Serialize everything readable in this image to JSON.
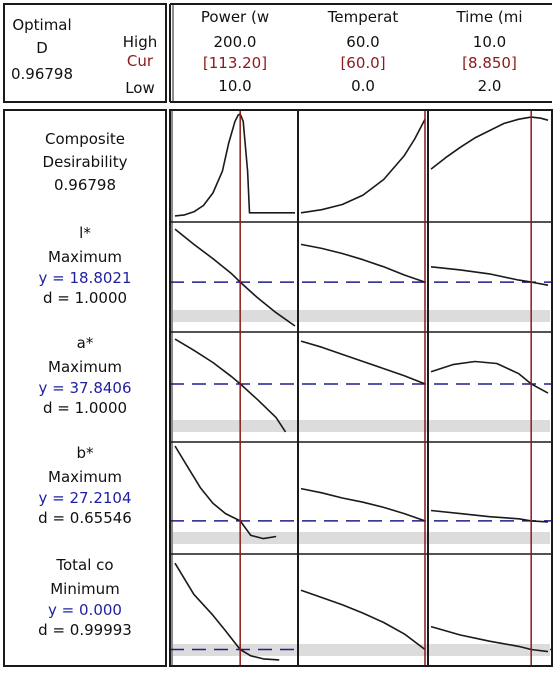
{
  "chart_data": {
    "type": "line",
    "title": "",
    "header": {
      "optimal_label": "Optimal",
      "d_label": "D",
      "d_value": "0.96798",
      "high_label": "High",
      "cur_label": "Cur",
      "low_label": "Low"
    },
    "factors": [
      {
        "name": "Power (w",
        "high": "200.0",
        "cur": "[113.20]",
        "low": "10.0",
        "range": [
          10,
          200
        ],
        "current": 113.2
      },
      {
        "name": "Temperat",
        "high": "60.0",
        "cur": "[60.0]",
        "low": "0.0",
        "range": [
          0,
          60
        ],
        "current": 60.0
      },
      {
        "name": "Time (mi",
        "high": "10.0",
        "cur": "[8.850]",
        "low": "2.0",
        "range": [
          2,
          10
        ],
        "current": 8.85
      }
    ],
    "responses": [
      {
        "name_lines": [
          "Composite",
          "Desirability",
          "0.96798"
        ],
        "goal": "",
        "y_text": "",
        "d_text": "",
        "composite": true,
        "ylim": [
          0,
          1
        ],
        "ref_y": null,
        "curves": [
          [
            [
              10,
              0.02
            ],
            [
              25,
              0.03
            ],
            [
              40,
              0.06
            ],
            [
              55,
              0.12
            ],
            [
              70,
              0.24
            ],
            [
              85,
              0.45
            ],
            [
              95,
              0.72
            ],
            [
              105,
              0.93
            ],
            [
              110,
              0.99
            ],
            [
              113.2,
              1.0
            ],
            [
              118,
              0.93
            ],
            [
              125,
              0.45
            ],
            [
              128,
              0.05
            ],
            [
              140,
              0.05
            ],
            [
              160,
              0.05
            ],
            [
              180,
              0.05
            ],
            [
              200,
              0.05
            ]
          ],
          [
            [
              0,
              0.05
            ],
            [
              10,
              0.08
            ],
            [
              20,
              0.13
            ],
            [
              30,
              0.22
            ],
            [
              40,
              0.37
            ],
            [
              50,
              0.6
            ],
            [
              55,
              0.76
            ],
            [
              60,
              0.95
            ]
          ],
          [
            [
              2,
              0.47
            ],
            [
              3,
              0.58
            ],
            [
              4,
              0.68
            ],
            [
              5,
              0.77
            ],
            [
              6,
              0.84
            ],
            [
              7,
              0.91
            ],
            [
              8,
              0.95
            ],
            [
              8.85,
              0.97
            ],
            [
              9.5,
              0.96
            ],
            [
              10,
              0.94
            ]
          ]
        ]
      },
      {
        "name_lines": [
          "l*"
        ],
        "goal": "Maximum",
        "y_text": "y = 18.8021",
        "d_text": "d = 1.0000",
        "composite": false,
        "ylim": [
          0,
          1
        ],
        "ref_y": 0.45,
        "curves": [
          [
            [
              10,
              0.97
            ],
            [
              40,
              0.82
            ],
            [
              70,
              0.68
            ],
            [
              100,
              0.53
            ],
            [
              113.2,
              0.45
            ],
            [
              140,
              0.3
            ],
            [
              170,
              0.15
            ],
            [
              200,
              0.02
            ]
          ],
          [
            [
              0,
              0.82
            ],
            [
              10,
              0.78
            ],
            [
              20,
              0.73
            ],
            [
              30,
              0.67
            ],
            [
              40,
              0.6
            ],
            [
              50,
              0.52
            ],
            [
              60,
              0.45
            ]
          ],
          [
            [
              2,
              0.6
            ],
            [
              4,
              0.57
            ],
            [
              6,
              0.53
            ],
            [
              8,
              0.47
            ],
            [
              8.85,
              0.45
            ],
            [
              10,
              0.42
            ]
          ]
        ]
      },
      {
        "name_lines": [
          "a*"
        ],
        "goal": "Maximum",
        "y_text": "y = 37.8406",
        "d_text": "d = 1.0000",
        "composite": false,
        "ylim": [
          0,
          1
        ],
        "ref_y": 0.53,
        "curves": [
          [
            [
              10,
              0.97
            ],
            [
              40,
              0.86
            ],
            [
              70,
              0.74
            ],
            [
              100,
              0.6
            ],
            [
              113.2,
              0.53
            ],
            [
              140,
              0.38
            ],
            [
              170,
              0.2
            ],
            [
              185,
              0.06
            ]
          ],
          [
            [
              0,
              0.95
            ],
            [
              10,
              0.89
            ],
            [
              20,
              0.82
            ],
            [
              30,
              0.75
            ],
            [
              40,
              0.68
            ],
            [
              50,
              0.61
            ],
            [
              60,
              0.53
            ]
          ],
          [
            [
              2,
              0.65
            ],
            [
              3.5,
              0.72
            ],
            [
              5,
              0.75
            ],
            [
              6.5,
              0.73
            ],
            [
              8,
              0.63
            ],
            [
              8.85,
              0.53
            ],
            [
              10,
              0.44
            ]
          ]
        ]
      },
      {
        "name_lines": [
          "b*"
        ],
        "goal": "Maximum",
        "y_text": "y = 27.2104",
        "d_text": "d = 0.65546",
        "composite": false,
        "ylim": [
          0,
          1
        ],
        "ref_y": 0.28,
        "curves": [
          [
            [
              10,
              1.0
            ],
            [
              30,
              0.8
            ],
            [
              50,
              0.6
            ],
            [
              70,
              0.45
            ],
            [
              90,
              0.35
            ],
            [
              113.2,
              0.28
            ],
            [
              130,
              0.14
            ],
            [
              150,
              0.11
            ],
            [
              170,
              0.13
            ]
          ],
          [
            [
              0,
              0.59
            ],
            [
              10,
              0.55
            ],
            [
              20,
              0.5
            ],
            [
              30,
              0.46
            ],
            [
              40,
              0.41
            ],
            [
              50,
              0.35
            ],
            [
              60,
              0.28
            ]
          ],
          [
            [
              2,
              0.38
            ],
            [
              4,
              0.35
            ],
            [
              6,
              0.32
            ],
            [
              8,
              0.3
            ],
            [
              8.85,
              0.28
            ],
            [
              10,
              0.27
            ]
          ]
        ]
      },
      {
        "name_lines": [
          "Total co"
        ],
        "goal": "Minimum",
        "y_text": "y = 0.000",
        "d_text": "d = 0.99993",
        "composite": false,
        "ylim": [
          0,
          1
        ],
        "ref_y": 0.12,
        "curves": [
          [
            [
              10,
              0.95
            ],
            [
              40,
              0.65
            ],
            [
              70,
              0.45
            ],
            [
              90,
              0.3
            ],
            [
              113.2,
              0.12
            ],
            [
              130,
              0.06
            ],
            [
              150,
              0.03
            ],
            [
              175,
              0.02
            ]
          ],
          [
            [
              0,
              0.69
            ],
            [
              10,
              0.62
            ],
            [
              20,
              0.55
            ],
            [
              30,
              0.47
            ],
            [
              40,
              0.38
            ],
            [
              50,
              0.27
            ],
            [
              60,
              0.12
            ]
          ],
          [
            [
              2,
              0.34
            ],
            [
              4,
              0.26
            ],
            [
              6,
              0.2
            ],
            [
              8,
              0.15
            ],
            [
              8.85,
              0.12
            ],
            [
              10,
              0.1
            ]
          ]
        ]
      }
    ]
  },
  "colors": {
    "curve": "#1a1a1a",
    "current_line": "#8b1a1a",
    "reference_line": "#1f1f8f",
    "band": "#dcdcdc",
    "cur_text": "#8b1a1a",
    "y_text": "#1f1fa0",
    "frame": "#1a1a1a"
  }
}
